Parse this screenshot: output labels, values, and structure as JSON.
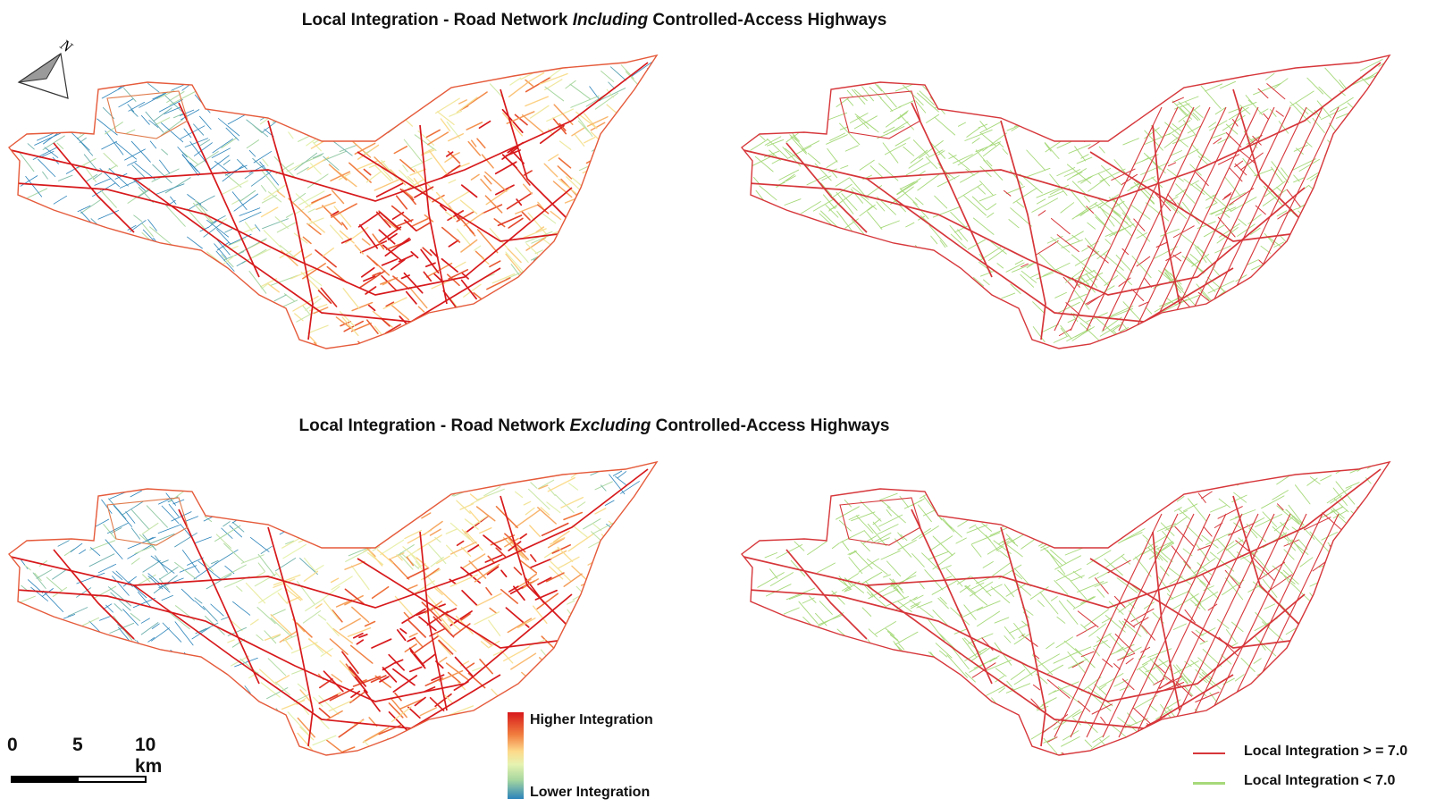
{
  "panels": {
    "top": {
      "title_prefix": "Local Integration - Road Network ",
      "title_emphasis": "Including",
      "title_suffix": " Controlled-Access Highways"
    },
    "bottom": {
      "title_prefix": "Local Integration - Road Network ",
      "title_emphasis": "Excluding",
      "title_suffix": " Controlled-Access Highways"
    }
  },
  "north_arrow": {
    "label": "N",
    "icon": "north-arrow-icon"
  },
  "scale_bar": {
    "ticks": [
      "0",
      "5",
      "10 km"
    ]
  },
  "gradient_legend": {
    "high_label": "Higher Integration",
    "low_label": "Lower Integration",
    "colors": [
      "#d7191c",
      "#f07a3d",
      "#fdd98a",
      "#e6f3b0",
      "#a7d7a0",
      "#2b83ba"
    ]
  },
  "binary_legend": {
    "items": [
      {
        "label": "Local Integration > = 7.0",
        "color": "#d6363a"
      },
      {
        "label": "Local Integration < 7.0",
        "color": "#a6d97a"
      }
    ]
  }
}
